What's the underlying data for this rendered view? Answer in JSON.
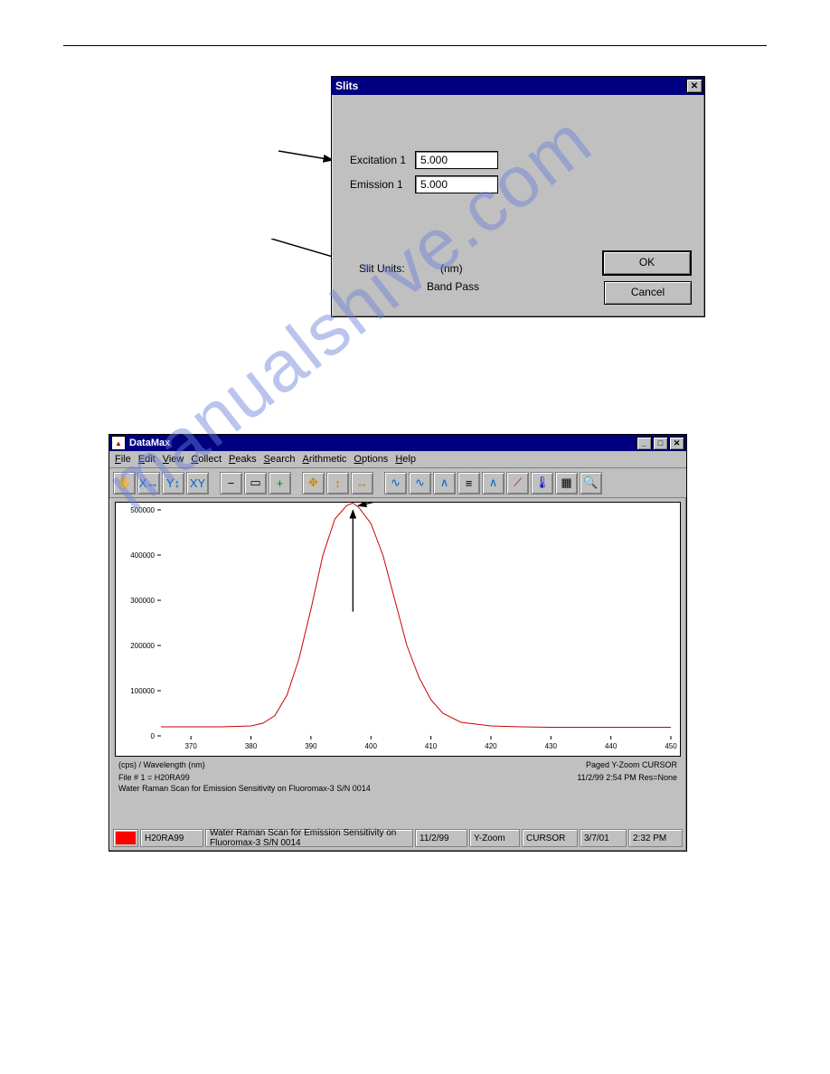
{
  "slits_dialog": {
    "title": "Slits",
    "fields": {
      "excitation1_label": "Excitation 1",
      "excitation1_value": "5.000",
      "emission1_label": "Emission 1",
      "emission1_value": "5.000"
    },
    "units_label": "Slit Units:",
    "units_value": "(nm)",
    "units_sub": "Band Pass",
    "ok_label": "OK",
    "cancel_label": "Cancel"
  },
  "datamax": {
    "title": "DataMax",
    "menus": [
      "File",
      "Edit",
      "View",
      "Collect",
      "Peaks",
      "Search",
      "Arithmetic",
      "Options",
      "Help"
    ],
    "toolbar_icons": [
      "✋",
      "X↔",
      "Y↕",
      "XY",
      "−",
      "▭",
      "+",
      "✥",
      "↕",
      "↔",
      "∿",
      "∿",
      "∧",
      "≡",
      "∧",
      "⟋",
      "🌡",
      "▦",
      "🔍"
    ],
    "plot": {
      "type": "line",
      "xlabel_units": "(cps) / Wavelength (nm)",
      "xlim": [
        365,
        450
      ],
      "ylim": [
        0,
        500000
      ],
      "xticks": [
        370,
        380,
        390,
        400,
        410,
        420,
        430,
        440,
        450
      ],
      "yticks": [
        0,
        100000,
        200000,
        300000,
        400000,
        500000
      ],
      "ytick_labels": [
        "0",
        "100000",
        "200000",
        "300000",
        "400000",
        "500000"
      ],
      "curve_color": "#cc0000",
      "background_color": "#ffffff",
      "axis_color": "#000000",
      "line_width": 1,
      "series": [
        [
          365,
          20000
        ],
        [
          370,
          20000
        ],
        [
          375,
          20000
        ],
        [
          380,
          22000
        ],
        [
          382,
          28000
        ],
        [
          384,
          45000
        ],
        [
          386,
          90000
        ],
        [
          388,
          170000
        ],
        [
          390,
          280000
        ],
        [
          392,
          400000
        ],
        [
          394,
          480000
        ],
        [
          396,
          510000
        ],
        [
          397,
          515000
        ],
        [
          398,
          505000
        ],
        [
          400,
          470000
        ],
        [
          402,
          400000
        ],
        [
          404,
          300000
        ],
        [
          406,
          200000
        ],
        [
          408,
          130000
        ],
        [
          410,
          80000
        ],
        [
          412,
          50000
        ],
        [
          415,
          30000
        ],
        [
          420,
          22000
        ],
        [
          425,
          20000
        ],
        [
          430,
          19000
        ],
        [
          435,
          19000
        ],
        [
          440,
          19000
        ],
        [
          445,
          19000
        ],
        [
          450,
          19000
        ]
      ],
      "peak_x": 397,
      "peak_y": 515000
    },
    "info_right_1": "Paged   Y-Zoom CURSOR",
    "info_right_2": "11/2/99  2:54 PM  Res=None",
    "file_line": "File # 1 = H20RA99",
    "caption_line": "Water Raman Scan for Emission Sensitivity on Fluoromax-3 S/N 0014",
    "statusbar": {
      "swatch_color": "#ff0000",
      "file": "H20RA99",
      "desc": "Water Raman Scan for Emission Sensitivity on Fluoromax-3 S/N 0014",
      "date": "11/2/99",
      "mode1": "Y-Zoom",
      "mode2": "CURSOR",
      "date2": "3/7/01",
      "time": "2:32 PM"
    }
  },
  "watermark_text": "manualshive.com"
}
